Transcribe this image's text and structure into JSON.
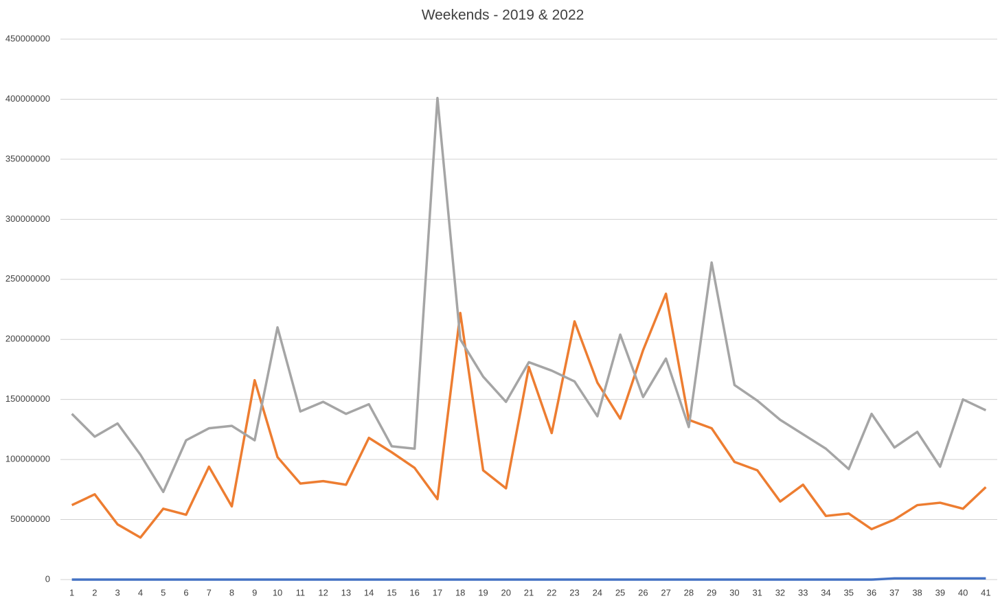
{
  "chart_data": {
    "type": "line",
    "title": "Weekends - 2019 & 2022",
    "categories": [
      1,
      2,
      3,
      4,
      5,
      6,
      7,
      8,
      9,
      10,
      11,
      12,
      13,
      14,
      15,
      16,
      17,
      18,
      19,
      20,
      21,
      22,
      23,
      24,
      25,
      26,
      27,
      28,
      29,
      30,
      31,
      32,
      33,
      34,
      35,
      36,
      37,
      38,
      39,
      40,
      41
    ],
    "series": [
      {
        "color": "#4472c4",
        "values": [
          0,
          0,
          0,
          0,
          0,
          0,
          0,
          0,
          0,
          0,
          0,
          0,
          0,
          0,
          0,
          0,
          0,
          0,
          0,
          0,
          0,
          0,
          0,
          0,
          0,
          0,
          0,
          0,
          0,
          0,
          0,
          0,
          0,
          0,
          0,
          0,
          1000000,
          1000000,
          1000000,
          1000000,
          1000000
        ]
      },
      {
        "color": "#ed7d31",
        "values": [
          62000000,
          71000000,
          46000000,
          35000000,
          59000000,
          54000000,
          94000000,
          61000000,
          166000000,
          102000000,
          80000000,
          82000000,
          79000000,
          118000000,
          106000000,
          93000000,
          67000000,
          222000000,
          91000000,
          76000000,
          177000000,
          122000000,
          215000000,
          164000000,
          134000000,
          191000000,
          238000000,
          133000000,
          126000000,
          98000000,
          91000000,
          65000000,
          79000000,
          53000000,
          55000000,
          42000000,
          50000000,
          62000000,
          64000000,
          59000000,
          77000000
        ]
      },
      {
        "color": "#a5a5a5",
        "values": [
          138000000,
          119000000,
          130000000,
          104000000,
          73000000,
          116000000,
          126000000,
          128000000,
          116000000,
          210000000,
          140000000,
          148000000,
          138000000,
          146000000,
          111000000,
          109000000,
          401000000,
          200000000,
          169000000,
          148000000,
          181000000,
          174000000,
          165000000,
          136000000,
          204000000,
          152000000,
          184000000,
          127000000,
          264000000,
          162000000,
          149000000,
          133000000,
          121000000,
          109000000,
          92000000,
          138000000,
          110000000,
          123000000,
          94000000,
          150000000,
          141000000
        ]
      }
    ],
    "ylim": [
      0,
      450000000
    ],
    "yticks": [
      0,
      50000000,
      100000000,
      150000000,
      200000000,
      250000000,
      300000000,
      350000000,
      400000000,
      450000000
    ],
    "grid": true
  }
}
